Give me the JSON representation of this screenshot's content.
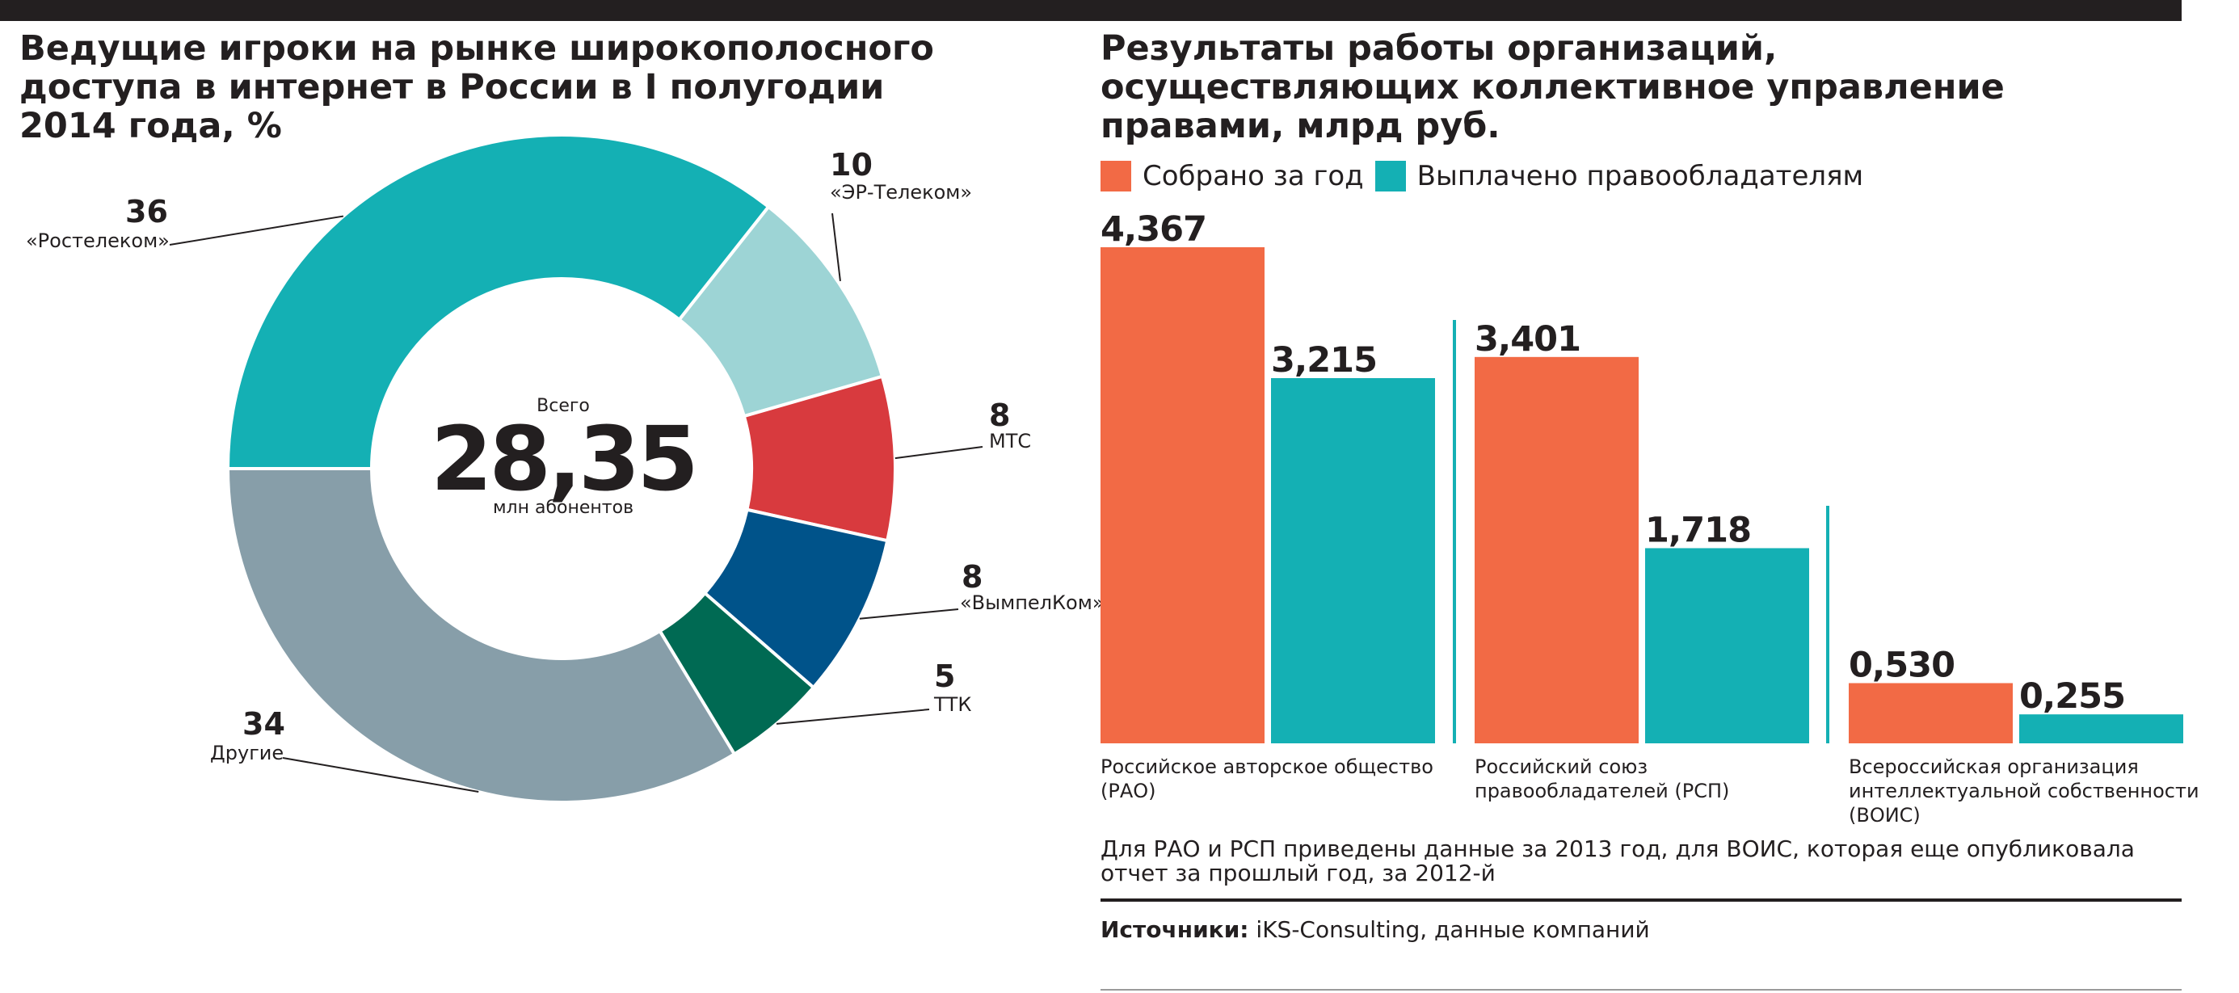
{
  "left_chart": {
    "title_lines": [
      "Ведущие игроки на рынке широкополосного",
      "доступа в интернет в России в I полугодии",
      "2014 года, %"
    ],
    "center_label_top": "Всего",
    "center_value": "28,35",
    "center_label_bottom": "млн абонентов",
    "slices": [
      {
        "name": "«Ростелеком»",
        "label": "36",
        "color": "#14b0b4"
      },
      {
        "name": "«ЭР-Телеком»",
        "label": "10",
        "color": "#9dd4d5"
      },
      {
        "name": "МТС",
        "label": "8",
        "color": "#d83a3e"
      },
      {
        "name": "«ВымпелКом»",
        "label": "8",
        "color": "#00538a"
      },
      {
        "name": "ТТК",
        "label": "5",
        "color": "#006a53"
      },
      {
        "name": "Другие",
        "label": "34",
        "color": "#879ea9"
      }
    ]
  },
  "right_chart": {
    "title_lines": [
      "Результаты работы организаций,",
      "осуществляющих коллективное управление",
      "правами, млрд руб."
    ],
    "legend": [
      {
        "label": "Собрано за год",
        "color": "#f26a45"
      },
      {
        "label": "Выплачено правообладателям",
        "color": "#14b0b4"
      }
    ],
    "groups": [
      {
        "label_lines": [
          "Российское авторское общество",
          "(РАО)"
        ],
        "collected_label": "4,367",
        "paid_label": "3,215"
      },
      {
        "label_lines": [
          "Российский союз",
          "правообладателей (РСП)"
        ],
        "collected_label": "3,401",
        "paid_label": "1,718"
      },
      {
        "label_lines": [
          "Всероссийская организация",
          "интеллектуальной собственности",
          "(ВОИС)"
        ],
        "collected_label": "0,530",
        "paid_label": "0,255"
      }
    ],
    "note_lines": [
      "Для РАО и РСП приведены данные за 2013 год, для ВОИС, которая еще опубликовала",
      "отчет за прошлый год, за 2012-й"
    ],
    "source_prefix": "Источники:",
    "source_text": " iKS-Consulting, данные компаний"
  },
  "chart_data": [
    {
      "type": "pie",
      "title": "Ведущие игроки на рынке широкополосного доступа в интернет в России в I полугодии 2014 года, %",
      "categories": [
        "«Ростелеком»",
        "«ЭР-Телеком»",
        "МТС",
        "«ВымпелКом»",
        "ТТК",
        "Другие"
      ],
      "values": [
        36,
        10,
        8,
        8,
        5,
        34
      ]
    },
    {
      "type": "bar",
      "title": "Результаты работы организаций, осуществляющих коллективное управление правами, млрд руб.",
      "categories": [
        "Российское авторское общество (РАО)",
        "Российский союз правообладателей (РСП)",
        "Всероссийская организация интеллектуальной собственности (ВОИС)"
      ],
      "series": [
        {
          "name": "Собрано за год",
          "values": [
            4.367,
            3.401,
            0.53
          ]
        },
        {
          "name": "Выплачено правообладателям",
          "values": [
            3.215,
            1.718,
            0.255
          ]
        }
      ],
      "ylim": [
        0,
        4.367
      ],
      "legend": "top-left"
    }
  ]
}
